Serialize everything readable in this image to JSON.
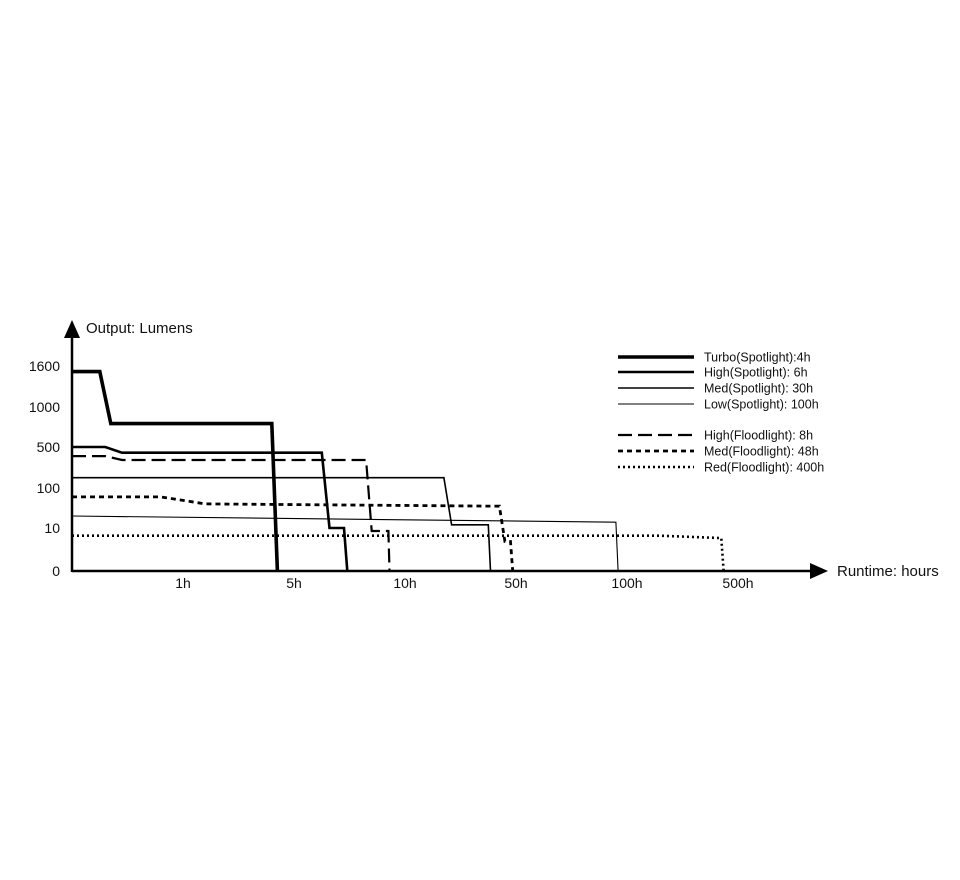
{
  "chart_data": {
    "type": "line",
    "title": "",
    "ylabel": "Output: Lumens",
    "xlabel": "Runtime: hours",
    "y_ticks": [
      "1600",
      "1000",
      "500",
      "100",
      "10",
      "0"
    ],
    "x_ticks": [
      "1h",
      "5h",
      "10h",
      "50h",
      "100h",
      "500h"
    ],
    "x_scale": "categorical-log",
    "y_scale": "categorical",
    "grid": false,
    "legend_position": "top-right",
    "series": [
      {
        "name": "Turbo(Spotlight):4h",
        "style": "thick-solid",
        "points": [
          [
            0,
            1500
          ],
          [
            0.25,
            1500
          ],
          [
            0.35,
            750
          ],
          [
            1.8,
            750
          ],
          [
            1.85,
            0
          ]
        ]
      },
      {
        "name": "High(Spotlight): 6h",
        "style": "medium-solid",
        "points": [
          [
            0,
            500
          ],
          [
            0.3,
            500
          ],
          [
            0.45,
            400
          ],
          [
            2.25,
            400
          ],
          [
            2.32,
            10
          ],
          [
            2.45,
            10
          ],
          [
            2.48,
            0
          ]
        ]
      },
      {
        "name": "Med(Spotlight): 30h",
        "style": "thin-solid",
        "points": [
          [
            0,
            150
          ],
          [
            3.35,
            150
          ],
          [
            3.42,
            12
          ],
          [
            3.75,
            12
          ],
          [
            3.77,
            0
          ]
        ]
      },
      {
        "name": "Low(Spotlight): 100h",
        "style": "hairline-solid",
        "points": [
          [
            0,
            20
          ],
          [
            4.9,
            14
          ],
          [
            4.92,
            0
          ]
        ]
      },
      {
        "name": "High(Floodlight): 8h",
        "style": "long-dash",
        "points": [
          [
            0,
            350
          ],
          [
            0.3,
            350
          ],
          [
            0.45,
            300
          ],
          [
            2.65,
            300
          ],
          [
            2.7,
            7
          ],
          [
            2.85,
            7
          ],
          [
            2.86,
            0
          ]
        ]
      },
      {
        "name": "Med(Floodlight): 48h",
        "style": "short-dash",
        "points": [
          [
            0,
            60
          ],
          [
            0.8,
            60
          ],
          [
            1.2,
            40
          ],
          [
            3.85,
            35
          ],
          [
            3.9,
            2
          ],
          [
            3.95,
            2
          ],
          [
            3.97,
            0
          ]
        ]
      },
      {
        "name": "Red(Floodlight): 400h",
        "style": "dotted",
        "points": [
          [
            0,
            4
          ],
          [
            5.3,
            4
          ],
          [
            5.85,
            3
          ],
          [
            5.87,
            0
          ]
        ]
      }
    ]
  }
}
